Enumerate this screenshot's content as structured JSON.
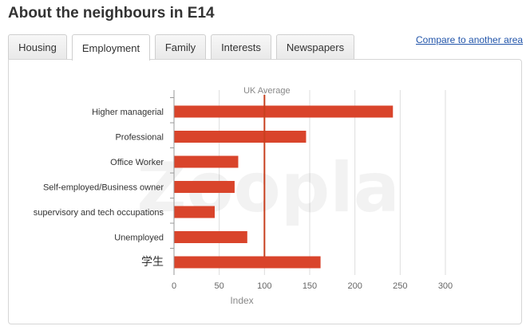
{
  "header": {
    "title": "About the neighbours in E14"
  },
  "tabs": [
    {
      "label": "Housing",
      "active": false
    },
    {
      "label": "Employment",
      "active": true
    },
    {
      "label": "Family",
      "active": false
    },
    {
      "label": "Interests",
      "active": false
    },
    {
      "label": "Newspapers",
      "active": false
    }
  ],
  "compare_link": "Compare to another area",
  "watermark": "Zoopla",
  "colors": {
    "bar": "#d9442b",
    "reference_line": "#c8401f",
    "grid": "#dddddd",
    "axis_text": "#666666"
  },
  "chart_data": {
    "type": "bar",
    "orientation": "horizontal",
    "categories": [
      "Higher managerial",
      "Professional",
      "Office Worker",
      "Self-employed/Business owner",
      "supervisory and tech occupations",
      "Unemployed",
      "学生"
    ],
    "values": [
      242,
      146,
      71,
      67,
      45,
      81,
      162
    ],
    "reference_line": {
      "value": 100,
      "label": "UK Average"
    },
    "xlabel": "Index",
    "xlim": [
      0,
      300
    ],
    "xticks": [
      0,
      50,
      100,
      150,
      200,
      250,
      300
    ],
    "grid": true
  }
}
